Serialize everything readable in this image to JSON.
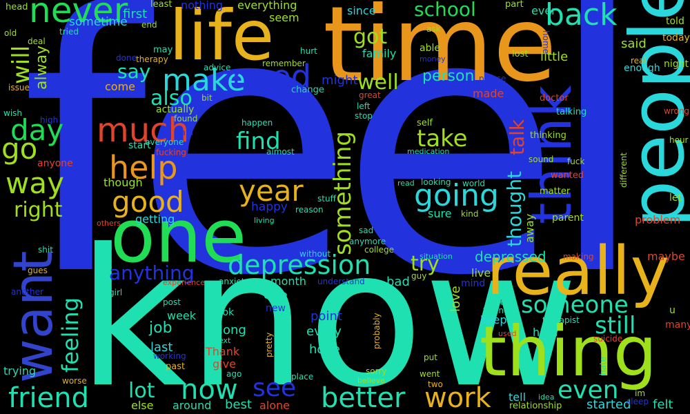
{
  "words": {
    "feel": "feel",
    "know": "know",
    "time": "time",
    "life": "life",
    "people": "people",
    "really": "really",
    "one": "one",
    "thing": "thing",
    "want": "want",
    "think": "think",
    "never": "never",
    "make": "make",
    "need": "need",
    "back": "back",
    "much": "much",
    "help": "help",
    "good": "good",
    "year": "year",
    "going": "going",
    "day": "day",
    "way": "way",
    "go": "go",
    "will": "will",
    "friend": "friend",
    "now": "now",
    "better": "better",
    "work": "work",
    "depression": "depression",
    "someone": "someone",
    "something": "something",
    "feeling": "feeling",
    "still": "still",
    "even": "even",
    "see": "see",
    "school": "school",
    "find": "find",
    "take": "take",
    "talk": "talk",
    "thought": "thought",
    "anything": "anything",
    "try": "try",
    "depressed": "depressed",
    "right": "right",
    "also": "also",
    "say": "say",
    "got": "got",
    "well": "well",
    "lot": "lot",
    "job": "job",
    "person": "person",
    "alway": "alway",
    "first": "first",
    "sometime": "sometime",
    "head": "head",
    "least": "least",
    "told": "told",
    "today": "today",
    "night": "night",
    "said": "said",
    "little": "little",
    "family": "family",
    "might": "might",
    "made": "made",
    "doctor": "doctor",
    "talking": "talking",
    "thinking": "thinking",
    "wanted": "wanted",
    "matter": "matter",
    "parent": "parent",
    "problem": "problem",
    "let": "let",
    "maybe": "maybe",
    "felt": "felt",
    "started": "started",
    "relationship": "relationship",
    "tell": "tell",
    "around": "around",
    "best": "best",
    "alone": "alone",
    "trying": "trying",
    "else": "else",
    "hope": "hope",
    "every": "every",
    "long": "long",
    "last": "last",
    "keep": "keep",
    "hard": "hard",
    "live": "live",
    "love": "love",
    "mind": "mind",
    "month": "month",
    "bad": "bad",
    "care": "care",
    "point": "point",
    "happy": "happy",
    "getting": "getting",
    "sure": "sure",
    "kind": "kind",
    "though": "though",
    "start": "start",
    "everyone": "everyone",
    "fucking": "fucking",
    "actually": "actually",
    "come": "come",
    "issue": "issue",
    "wish": "wish",
    "high": "high",
    "old": "old",
    "deal": "deal",
    "tried": "tried",
    "end": "end",
    "nothing": "nothing",
    "everything": "everything",
    "since": "since",
    "ever": "ever",
    "part": "part",
    "seem": "seem",
    "may": "may",
    "therapy": "therapy",
    "done": "done",
    "advice": "advice",
    "bit": "bit",
    "remember": "remember",
    "hurt": "hurt",
    "able": "able",
    "ask": "ask",
    "money": "money",
    "lost": "lost",
    "home": "home",
    "please": "please",
    "enough": "enough",
    "real": "real",
    "wrong": "wrong",
    "hour": "hour",
    "different": "different",
    "sound": "sound",
    "fuck": "fuck",
    "world": "world",
    "looking": "looking",
    "read": "read",
    "medication": "medication",
    "almost": "almost",
    "self": "self",
    "happen": "happen",
    "found": "found",
    "pain": "pain",
    "anyone": "anyone",
    "change": "change",
    "great": "great",
    "left": "left",
    "stop": "stop",
    "stuff": "stuff",
    "reason": "reason",
    "living": "living",
    "others": "others",
    "shit": "shit",
    "sad": "sad",
    "anymore": "anymore",
    "college": "college",
    "without": "without",
    "situation": "situation",
    "making": "making",
    "gues": "gues",
    "another": "another",
    "experience": "experience",
    "anxiety": "anxiety",
    "understand": "understand",
    "guy": "guy",
    "away": "away",
    "girl": "girl",
    "post": "post",
    "new": "new",
    "week": "week",
    "look": "look",
    "next": "next",
    "Thank": "Thank",
    "give": "give",
    "pretty": "pretty",
    "ago": "ago",
    "probably": "probably",
    "working": "working",
    "past": "past",
    "worse": "worse",
    "place": "place",
    "sorry": "sorry",
    "believe": "believe",
    "went": "went",
    "two": "two",
    "put": "put",
    "hate": "hate",
    "idea": "idea",
    "used": "used",
    "mean": "mean",
    "taking": "taking",
    "therapist": "therapist",
    "suicide": "suicide",
    "im": "im",
    "sleep": "sleep",
    "u": "u",
    "many": "many"
  },
  "colors": {
    "blue": "#2233dd",
    "teal": "#1fe0b0",
    "orange": "#e8961c",
    "green": "#20dd55",
    "lime": "#9fe01c",
    "cyan": "#2ad8dc",
    "red": "#e0452c",
    "gold": "#e8b21c",
    "navy": "#3344cc",
    "mint": "#40e08a"
  }
}
